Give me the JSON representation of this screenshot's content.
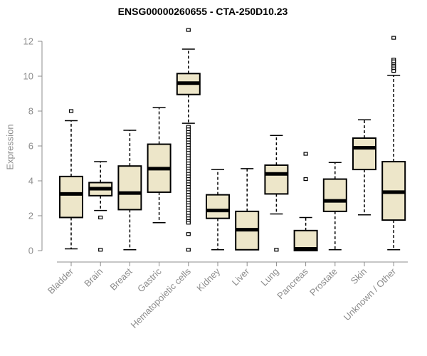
{
  "chart_data": {
    "type": "boxplot",
    "title": "ENSG00000260655 - CTA-250D10.23",
    "ylabel": "Expression",
    "xlabel": "",
    "ylim": [
      0,
      12
    ],
    "yticks": [
      0,
      2,
      4,
      6,
      8,
      10,
      12
    ],
    "grid": false,
    "legend": "none",
    "x_label_rotation_deg": 45,
    "colors": {
      "box_fill": "#ede6c9",
      "box_stroke": "#000000",
      "axis": "#8c8c8c",
      "tick_label": "#8c8c8c",
      "title": "#000000",
      "background": "#ffffff"
    },
    "categories": [
      "Bladder",
      "Brain",
      "Breast",
      "Gastric",
      "Hematopoietic cells",
      "Kidney",
      "Liver",
      "Lung",
      "Pancreas",
      "Prostate",
      "Skin",
      "Unknown / Other"
    ],
    "boxes": [
      {
        "name": "Bladder",
        "whisker_low": 0.1,
        "q1": 1.9,
        "median": 3.25,
        "q3": 4.25,
        "whisker_high": 7.45,
        "outliers": [
          8.0
        ]
      },
      {
        "name": "Brain",
        "whisker_low": 2.3,
        "q1": 3.15,
        "median": 3.55,
        "q3": 3.9,
        "whisker_high": 5.1,
        "outliers": [
          1.9,
          0.05
        ]
      },
      {
        "name": "Breast",
        "whisker_low": 0.05,
        "q1": 2.35,
        "median": 3.3,
        "q3": 4.85,
        "whisker_high": 6.9,
        "outliers": []
      },
      {
        "name": "Gastric",
        "whisker_low": 1.6,
        "q1": 3.35,
        "median": 4.7,
        "q3": 6.1,
        "whisker_high": 8.2,
        "outliers": []
      },
      {
        "name": "Hematopoietic cells",
        "whisker_low": 7.3,
        "q1": 8.95,
        "median": 9.6,
        "q3": 10.15,
        "whisker_high": 11.55,
        "outliers": [
          12.65,
          7.1,
          6.95,
          6.8,
          6.65,
          6.5,
          6.35,
          6.2,
          6.05,
          5.9,
          5.75,
          5.6,
          5.45,
          5.3,
          5.15,
          5.0,
          4.85,
          4.7,
          4.55,
          4.4,
          4.25,
          4.1,
          3.95,
          3.8,
          3.65,
          3.5,
          3.35,
          3.2,
          3.05,
          2.9,
          2.75,
          2.6,
          2.45,
          2.3,
          2.15,
          2.0,
          1.85,
          1.7,
          1.6,
          0.95,
          0.05
        ]
      },
      {
        "name": "Kidney",
        "whisker_low": 0.05,
        "q1": 1.85,
        "median": 2.3,
        "q3": 3.2,
        "whisker_high": 4.65,
        "outliers": []
      },
      {
        "name": "Liver",
        "whisker_low": 0.05,
        "q1": 0.05,
        "median": 1.2,
        "q3": 2.25,
        "whisker_high": 4.7,
        "outliers": []
      },
      {
        "name": "Lung",
        "whisker_low": 2.1,
        "q1": 3.25,
        "median": 4.4,
        "q3": 4.9,
        "whisker_high": 6.6,
        "outliers": [
          0.05
        ]
      },
      {
        "name": "Pancreas",
        "whisker_low": 0.0,
        "q1": 0.0,
        "median": 0.1,
        "q3": 1.15,
        "whisker_high": 1.9,
        "outliers": [
          5.55,
          4.1
        ]
      },
      {
        "name": "Prostate",
        "whisker_low": 0.05,
        "q1": 2.25,
        "median": 2.85,
        "q3": 4.1,
        "whisker_high": 5.05,
        "outliers": []
      },
      {
        "name": "Skin",
        "whisker_low": 2.05,
        "q1": 4.65,
        "median": 5.9,
        "q3": 6.45,
        "whisker_high": 7.5,
        "outliers": []
      },
      {
        "name": "Unknown / Other",
        "whisker_low": 0.05,
        "q1": 1.75,
        "median": 3.35,
        "q3": 5.1,
        "whisker_high": 10.05,
        "outliers": [
          12.2,
          10.95,
          10.85,
          10.7,
          10.6,
          10.5,
          10.4,
          10.3
        ]
      }
    ]
  }
}
